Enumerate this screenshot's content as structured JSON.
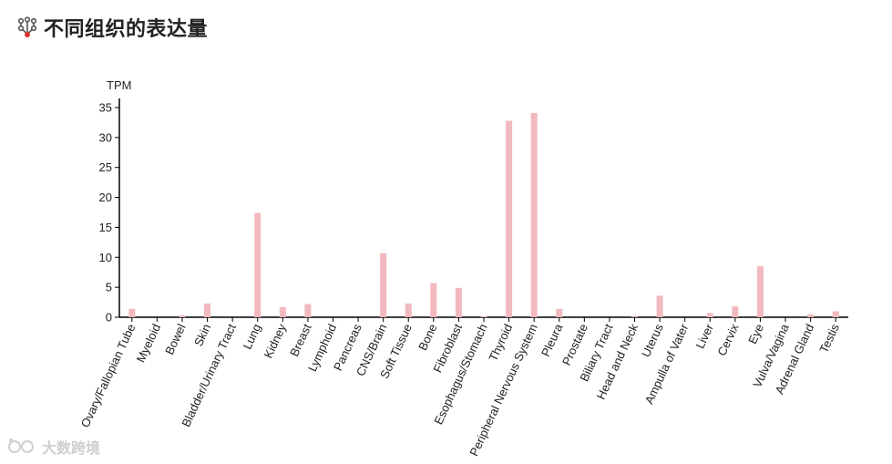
{
  "header": {
    "title": "不同组织的表达量",
    "icon": "molecule-icon",
    "icon_color": "#555555",
    "icon_accent": "#d9342b"
  },
  "watermark": {
    "text": "大数跨境"
  },
  "chart_data": {
    "type": "bar",
    "ylabel": "TPM",
    "xlabel": "",
    "ylim": [
      0,
      36
    ],
    "yticks": [
      0,
      5,
      10,
      15,
      20,
      25,
      30,
      35
    ],
    "bar_color": "#f2b9be",
    "grid": false,
    "categories": [
      "Ovary/Fallopian Tube",
      "Myeloid",
      "Bowel",
      "Skin",
      "Bladder/Urinary Tract",
      "Lung",
      "Kidney",
      "Breast",
      "Lymphoid",
      "Pancreas",
      "CNS/Brain",
      "Soft Tissue",
      "Bone",
      "Fibroblast",
      "Esophagus/Stomach",
      "Thyroid",
      "Peripheral Nervous System",
      "Pleura",
      "Prostate",
      "Biliary Tract",
      "Head and Neck",
      "Uterus",
      "Ampulla of Vater",
      "Liver",
      "Cervix",
      "Eye",
      "Vulva/Vagina",
      "Adrenal Gland",
      "Testis"
    ],
    "values": [
      1.4,
      0,
      0.3,
      2.3,
      0,
      17.4,
      1.7,
      2.2,
      0,
      0,
      10.7,
      2.3,
      5.7,
      4.9,
      0.2,
      32.8,
      34.1,
      1.4,
      0,
      0,
      0.1,
      3.6,
      0,
      0.7,
      1.8,
      8.5,
      0,
      0.5,
      1.0
    ]
  }
}
